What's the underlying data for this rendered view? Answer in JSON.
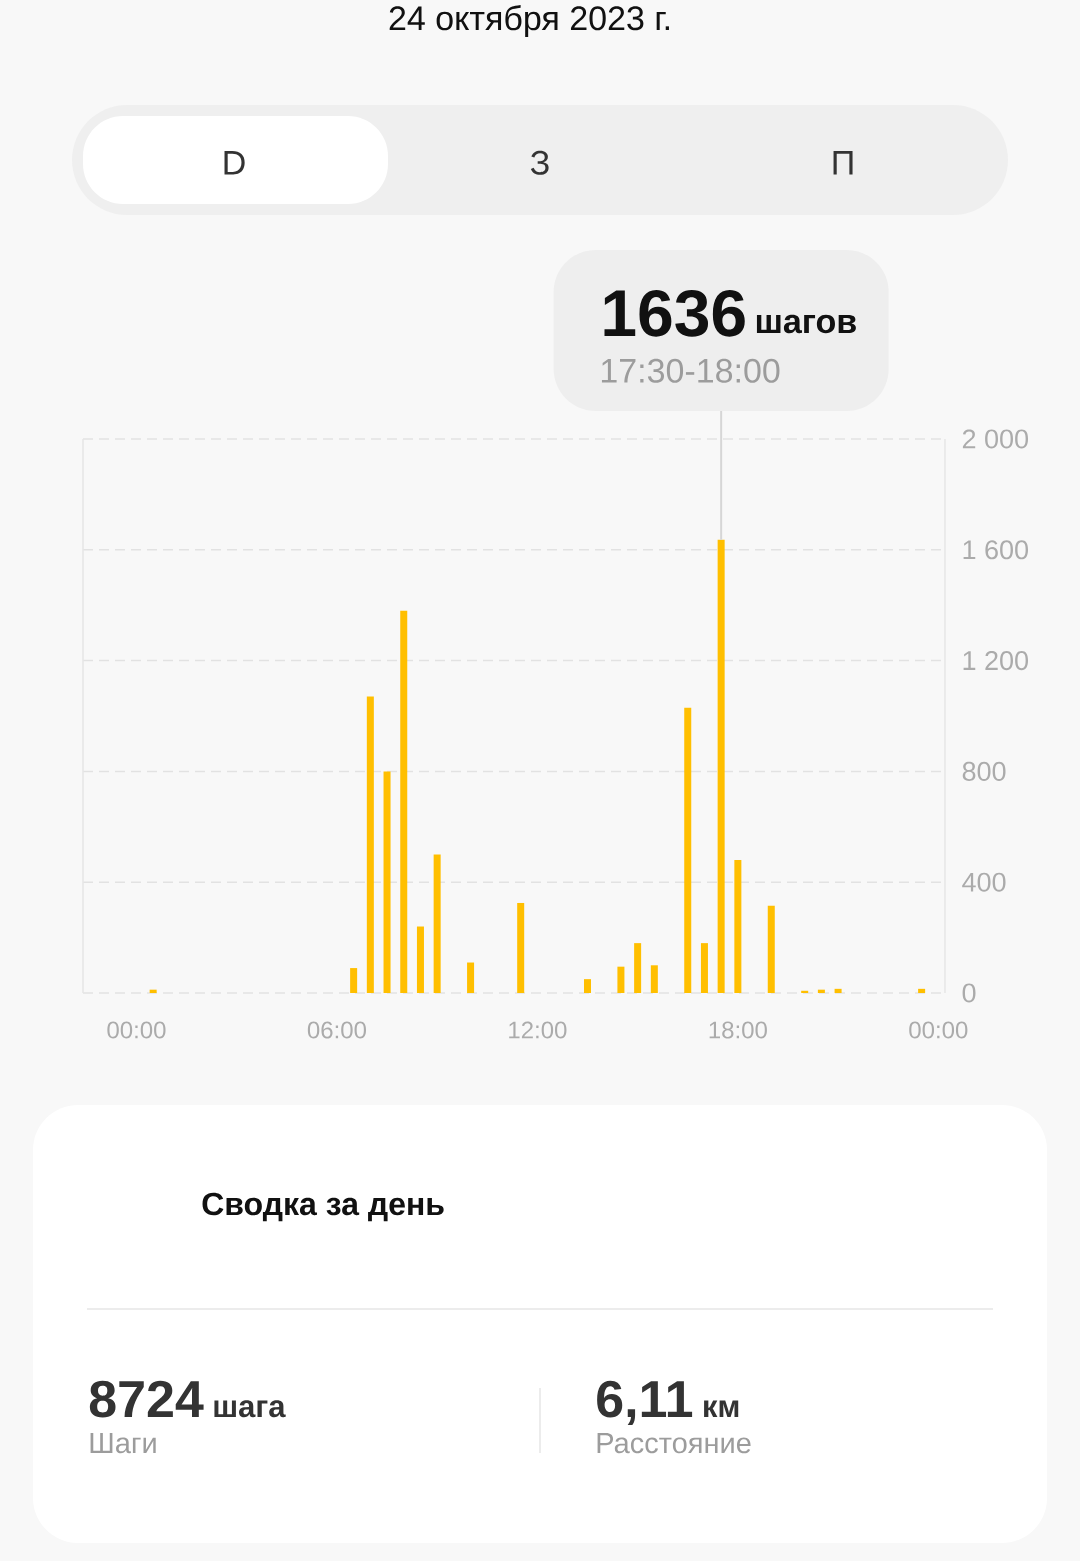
{
  "chart_data": {
    "type": "bar",
    "title": "24 октября 2023 г.",
    "x": [
      0.5,
      6.5,
      7,
      7.5,
      8,
      8.5,
      9,
      10,
      11.5,
      13.5,
      14.5,
      15,
      15.5,
      16.5,
      17,
      17.5,
      18,
      19,
      20,
      20.5,
      21,
      23.5
    ],
    "values": [
      12,
      90,
      1070,
      800,
      1380,
      240,
      500,
      110,
      325,
      50,
      95,
      180,
      100,
      1030,
      180,
      1636,
      480,
      315,
      8,
      12,
      15,
      15
    ],
    "color": "#ffbf00",
    "xlim": [
      -1.6,
      24.2
    ],
    "xticks": [
      {
        "value": 0,
        "label": "00:00"
      },
      {
        "value": 6,
        "label": "06:00"
      },
      {
        "value": 12,
        "label": "12:00"
      },
      {
        "value": 18,
        "label": "18:00"
      },
      {
        "value": 24,
        "label": "00:00"
      }
    ],
    "ylim": [
      0,
      2000
    ],
    "yticks": [
      0,
      400,
      800,
      {
        "value": 1200,
        "label": "1 200"
      },
      {
        "value": 1600,
        "label": "1 600"
      },
      {
        "value": 2000,
        "label": "2 000"
      }
    ],
    "grid": "y",
    "annotations": [
      {
        "text": "1636",
        "x": 17.5,
        "y": 1636
      },
      "шагов",
      "17:30-18:00",
      "D",
      "З",
      "П",
      "Сводка за день",
      "8724",
      "шага",
      "Шаги",
      "6,11",
      "км",
      "Расстояние"
    ]
  }
}
